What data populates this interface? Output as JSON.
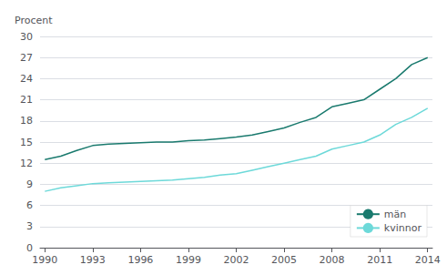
{
  "chart_data": {
    "type": "line",
    "y_label": "Procent",
    "x": [
      1990,
      1991,
      1992,
      1993,
      1994,
      1995,
      1996,
      1997,
      1998,
      1999,
      2000,
      2001,
      2002,
      2003,
      2004,
      2005,
      2006,
      2007,
      2008,
      2009,
      2010,
      2011,
      2012,
      2013,
      2014
    ],
    "series": [
      {
        "name": "män",
        "color": "#1a7a6e",
        "values": [
          12.5,
          13.0,
          13.8,
          14.5,
          14.7,
          14.8,
          14.9,
          15.0,
          15.0,
          15.2,
          15.3,
          15.5,
          15.7,
          16.0,
          16.5,
          17.0,
          17.8,
          18.5,
          20.0,
          20.5,
          21.0,
          22.5,
          24.0,
          26.0,
          27.0
        ]
      },
      {
        "name": "kvinnor",
        "color": "#6dd9d9",
        "values": [
          8.0,
          8.5,
          8.8,
          9.1,
          9.2,
          9.3,
          9.4,
          9.5,
          9.6,
          9.8,
          10.0,
          10.3,
          10.5,
          11.0,
          11.5,
          12.0,
          12.5,
          13.0,
          14.0,
          14.5,
          15.0,
          16.0,
          17.5,
          18.5,
          19.8
        ]
      }
    ],
    "xlim": [
      1989.7,
      2014.3
    ],
    "xticks": [
      1990,
      1993,
      1996,
      1999,
      2002,
      2005,
      2008,
      2011,
      2014
    ],
    "ylim": [
      0,
      30
    ],
    "yticks": [
      0,
      3,
      6,
      9,
      12,
      15,
      18,
      21,
      24,
      27,
      30
    ],
    "grid": true,
    "legend": "lower right"
  }
}
